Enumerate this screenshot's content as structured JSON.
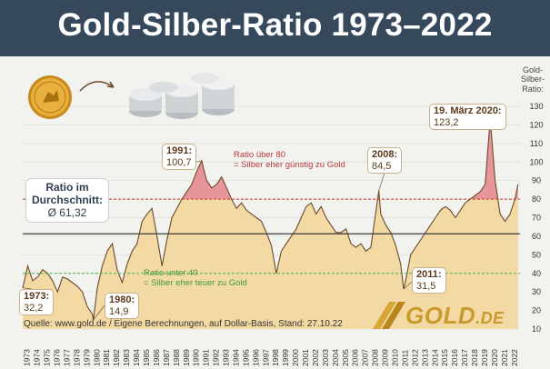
{
  "header": {
    "title": "Gold-Silber-Ratio 1973–2022"
  },
  "y_axis_title": [
    "Gold-",
    "Silber-",
    "Ratio:"
  ],
  "annotations": {
    "start": {
      "label": "1973:",
      "value": "32,2"
    },
    "low1980": {
      "label": "1980:",
      "value": "14,9"
    },
    "peak1991": {
      "label": "1991:",
      "value": "100,7"
    },
    "peak2008": {
      "label": "2008:",
      "value": "84,5"
    },
    "low2011": {
      "label": "2011:",
      "value": "31,5"
    },
    "peak2020": {
      "label": "19. März 2020:",
      "value": "123,2"
    }
  },
  "average_box": {
    "line1": "Ratio im",
    "line2": "Durchschnitt:",
    "line3": "Ø 61,32"
  },
  "notes": {
    "above80_line1": "Ratio über 80",
    "above80_line2": "= Silber eher günstig zu Gold",
    "below40_line1": "Ratio unter 40",
    "below40_line2": "= Silber eher teuer zu Gold"
  },
  "source": "Quelle: www.gold.de / Eigene Berechnungen, auf Dollar-Basis, Stand: 27.10.22",
  "logo": {
    "main": "GOLD",
    "suffix": ".DE"
  },
  "colors": {
    "header_bg": "#36495c",
    "area_fill": "#f3d9a4",
    "line": "#6b4a2a",
    "above80_fill": "#e8959a",
    "threshold80": "#c0392b",
    "threshold40": "#4caf50",
    "average_line": "#3a3a3a"
  },
  "icons": [
    "gold-coin-icon",
    "arrow-icon",
    "silver-coins-icon"
  ],
  "chart_data": {
    "type": "area",
    "title": "Gold-Silber-Ratio 1973–2022",
    "ylabel": "Gold-Silber-Ratio:",
    "ylim": [
      10,
      130
    ],
    "yticks": [
      10,
      20,
      30,
      40,
      50,
      60,
      70,
      80,
      90,
      100,
      110,
      120,
      130
    ],
    "xlim": [
      1973,
      2023
    ],
    "xticks": [
      "1973",
      "1974",
      "1975",
      "1976",
      "1977",
      "1978",
      "1979",
      "1980",
      "1981",
      "1982",
      "1983",
      "1984",
      "1985",
      "1986",
      "1987",
      "1988",
      "1989",
      "1990",
      "1991",
      "1992",
      "1993",
      "1994",
      "1995",
      "1996",
      "1997",
      "1998",
      "1999",
      "2000",
      "2001",
      "2002",
      "2003",
      "2004",
      "2005",
      "2006",
      "2007",
      "2008",
      "2009",
      "2010",
      "2011",
      "2012",
      "2013",
      "2014",
      "2015",
      "2016",
      "2017",
      "2018",
      "2019",
      "2020",
      "2021",
      "2022"
    ],
    "reference_lines": [
      {
        "y": 80,
        "label": "Ratio über 80"
      },
      {
        "y": 61.32,
        "label": "Ø 61,32"
      },
      {
        "y": 40,
        "label": "Ratio unter 40"
      }
    ],
    "x": [
      1973.0,
      1973.5,
      1974.0,
      1974.5,
      1975.0,
      1975.5,
      1976.0,
      1976.5,
      1977.0,
      1977.5,
      1978.0,
      1978.5,
      1979.0,
      1979.5,
      1980.0,
      1980.1,
      1980.5,
      1981.0,
      1981.5,
      1982.0,
      1982.5,
      1983.0,
      1983.5,
      1984.0,
      1984.5,
      1985.0,
      1985.5,
      1986.0,
      1986.5,
      1987.0,
      1987.5,
      1988.0,
      1988.5,
      1989.0,
      1989.5,
      1990.0,
      1990.5,
      1991.0,
      1991.2,
      1991.5,
      1992.0,
      1992.5,
      1993.0,
      1993.5,
      1994.0,
      1994.5,
      1995.0,
      1995.5,
      1996.0,
      1996.5,
      1997.0,
      1997.5,
      1998.0,
      1998.5,
      1999.0,
      1999.5,
      2000.0,
      2000.5,
      2001.0,
      2001.5,
      2002.0,
      2002.5,
      2003.0,
      2003.5,
      2004.0,
      2004.5,
      2005.0,
      2005.5,
      2006.0,
      2006.5,
      2007.0,
      2007.5,
      2008.0,
      2008.8,
      2009.0,
      2009.5,
      2010.0,
      2010.5,
      2011.0,
      2011.3,
      2011.5,
      2012.0,
      2012.5,
      2013.0,
      2013.5,
      2014.0,
      2014.5,
      2015.0,
      2015.5,
      2016.0,
      2016.5,
      2017.0,
      2017.5,
      2018.0,
      2018.5,
      2019.0,
      2019.5,
      2020.0,
      2020.2,
      2020.5,
      2021.0,
      2021.5,
      2022.0,
      2022.5,
      2022.8
    ],
    "y": [
      32.2,
      44,
      36,
      38,
      42,
      40,
      36,
      30,
      38,
      37,
      35,
      33,
      30,
      22,
      18,
      14.9,
      32,
      44,
      52,
      56,
      42,
      35,
      45,
      52,
      56,
      68,
      72,
      75,
      60,
      44,
      58,
      70,
      75,
      80,
      84,
      88,
      95,
      100.7,
      96,
      90,
      86,
      88,
      92,
      86,
      80,
      75,
      78,
      74,
      72,
      70,
      68,
      62,
      55,
      40,
      52,
      56,
      60,
      64,
      70,
      76,
      78,
      72,
      76,
      70,
      66,
      62,
      62,
      64,
      56,
      54,
      56,
      52,
      54,
      84.5,
      72,
      66,
      62,
      55,
      45,
      31.5,
      36,
      50,
      54,
      58,
      62,
      66,
      70,
      74,
      76,
      74,
      70,
      74,
      78,
      80,
      82,
      84,
      88,
      123.2,
      110,
      90,
      72,
      68,
      72,
      80,
      88
    ]
  }
}
